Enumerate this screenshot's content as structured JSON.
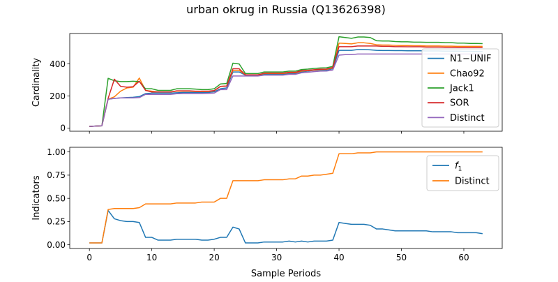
{
  "figure": {
    "title": "urban okrug in Russia (Q13626398)",
    "shared_xlabel": "Sample Periods"
  },
  "chart_data": [
    {
      "type": "line",
      "ylabel": "Cardinality",
      "xlim": [
        -3.15,
        66.15
      ],
      "ylim": [
        -20,
        590
      ],
      "xticks": [
        0,
        10,
        20,
        30,
        40,
        50,
        60
      ],
      "show_xtick_labels": false,
      "yticks": [
        0,
        200,
        400
      ],
      "ytick_labels": [
        "0",
        "200",
        "400"
      ],
      "legend": "right",
      "series": [
        {
          "name": "N1−UNIF",
          "color": "#1f77b4",
          "values": [
            10,
            12,
            14,
            180,
            185,
            188,
            190,
            192,
            196,
            215,
            218,
            218,
            218,
            218,
            220,
            222,
            222,
            222,
            222,
            222,
            226,
            245,
            250,
            350,
            350,
            330,
            330,
            330,
            335,
            335,
            335,
            335,
            340,
            340,
            350,
            355,
            360,
            362,
            362,
            370,
            485,
            485,
            485,
            490,
            490,
            488,
            485,
            484,
            484,
            483,
            483,
            482,
            482,
            482,
            481,
            481,
            481,
            480,
            480,
            480,
            479,
            479,
            478,
            478
          ]
        },
        {
          "name": "Chao92",
          "color": "#ff7f0e",
          "values": [
            10,
            12,
            14,
            180,
            195,
            230,
            250,
            255,
            312,
            235,
            230,
            225,
            225,
            225,
            230,
            230,
            230,
            228,
            228,
            228,
            232,
            260,
            262,
            360,
            360,
            332,
            332,
            332,
            340,
            340,
            340,
            340,
            345,
            345,
            355,
            358,
            362,
            365,
            366,
            375,
            530,
            528,
            525,
            532,
            532,
            528,
            520,
            518,
            518,
            516,
            515,
            515,
            514,
            514,
            512,
            512,
            512,
            511,
            511,
            510,
            510,
            510,
            510,
            510
          ]
        },
        {
          "name": "Jack1",
          "color": "#2ca02c",
          "values": [
            10,
            12,
            14,
            310,
            295,
            290,
            290,
            292,
            290,
            245,
            245,
            235,
            235,
            235,
            245,
            245,
            245,
            243,
            240,
            240,
            245,
            275,
            278,
            405,
            400,
            340,
            340,
            340,
            350,
            350,
            350,
            350,
            355,
            355,
            365,
            368,
            372,
            375,
            376,
            385,
            570,
            565,
            560,
            568,
            568,
            565,
            545,
            543,
            543,
            540,
            538,
            538,
            536,
            536,
            535,
            535,
            535,
            533,
            533,
            530,
            530,
            528,
            528,
            527
          ]
        },
        {
          "name": "SOR",
          "color": "#d62728",
          "values": [
            10,
            12,
            14,
            185,
            305,
            260,
            255,
            258,
            292,
            235,
            225,
            225,
            225,
            225,
            232,
            232,
            232,
            230,
            230,
            230,
            234,
            260,
            262,
            370,
            370,
            332,
            332,
            332,
            342,
            342,
            342,
            342,
            348,
            348,
            358,
            360,
            364,
            367,
            368,
            378,
            508,
            508,
            508,
            512,
            512,
            512,
            512,
            510,
            510,
            508,
            508,
            507,
            507,
            507,
            505,
            505,
            505,
            504,
            504,
            503,
            503,
            503,
            503,
            503
          ]
        },
        {
          "name": "Distinct",
          "color": "#9467bd",
          "values": [
            10,
            12,
            14,
            180,
            185,
            188,
            188,
            188,
            190,
            210,
            210,
            210,
            210,
            210,
            214,
            214,
            214,
            214,
            214,
            216,
            218,
            240,
            240,
            325,
            325,
            325,
            325,
            325,
            330,
            330,
            330,
            330,
            335,
            335,
            345,
            348,
            352,
            355,
            356,
            362,
            455,
            458,
            458,
            462,
            462,
            462,
            462,
            462,
            462,
            462,
            462,
            462,
            462,
            462,
            462,
            462,
            462,
            462,
            462,
            462,
            462,
            462,
            462,
            462
          ]
        }
      ]
    },
    {
      "type": "line",
      "ylabel": "Indicators",
      "xlabel": "Sample Periods",
      "xlim": [
        -3.15,
        66.15
      ],
      "ylim": [
        -0.04,
        1.05
      ],
      "xticks": [
        0,
        10,
        20,
        30,
        40,
        50,
        60
      ],
      "xtick_labels": [
        "0",
        "10",
        "20",
        "30",
        "40",
        "50",
        "60"
      ],
      "yticks": [
        0.0,
        0.25,
        0.5,
        0.75,
        1.0
      ],
      "ytick_labels": [
        "0.00",
        "0.25",
        "0.50",
        "0.75",
        "1.00"
      ],
      "legend": "top-right",
      "series": [
        {
          "name": "f",
          "name_subscript": "1",
          "color": "#1f77b4",
          "values": [
            0.02,
            0.02,
            0.02,
            0.37,
            0.28,
            0.26,
            0.25,
            0.25,
            0.24,
            0.08,
            0.08,
            0.05,
            0.05,
            0.05,
            0.06,
            0.06,
            0.06,
            0.06,
            0.05,
            0.05,
            0.06,
            0.08,
            0.08,
            0.19,
            0.17,
            0.02,
            0.02,
            0.02,
            0.03,
            0.03,
            0.03,
            0.03,
            0.04,
            0.03,
            0.04,
            0.03,
            0.04,
            0.04,
            0.04,
            0.05,
            0.24,
            0.23,
            0.22,
            0.22,
            0.22,
            0.21,
            0.17,
            0.17,
            0.16,
            0.15,
            0.15,
            0.15,
            0.15,
            0.15,
            0.15,
            0.14,
            0.14,
            0.14,
            0.14,
            0.13,
            0.13,
            0.13,
            0.13,
            0.12
          ]
        },
        {
          "name": "Distinct",
          "color": "#ff7f0e",
          "values": [
            0.02,
            0.02,
            0.02,
            0.38,
            0.39,
            0.39,
            0.39,
            0.39,
            0.4,
            0.44,
            0.44,
            0.44,
            0.44,
            0.44,
            0.45,
            0.45,
            0.45,
            0.45,
            0.46,
            0.46,
            0.46,
            0.5,
            0.5,
            0.69,
            0.69,
            0.69,
            0.69,
            0.69,
            0.7,
            0.7,
            0.7,
            0.7,
            0.71,
            0.71,
            0.74,
            0.74,
            0.75,
            0.75,
            0.76,
            0.77,
            0.98,
            0.98,
            0.98,
            0.99,
            0.99,
            0.99,
            1.0,
            1.0,
            1.0,
            1.0,
            1.0,
            1.0,
            1.0,
            1.0,
            1.0,
            1.0,
            1.0,
            1.0,
            1.0,
            1.0,
            1.0,
            1.0,
            1.0,
            1.0
          ]
        }
      ]
    }
  ]
}
